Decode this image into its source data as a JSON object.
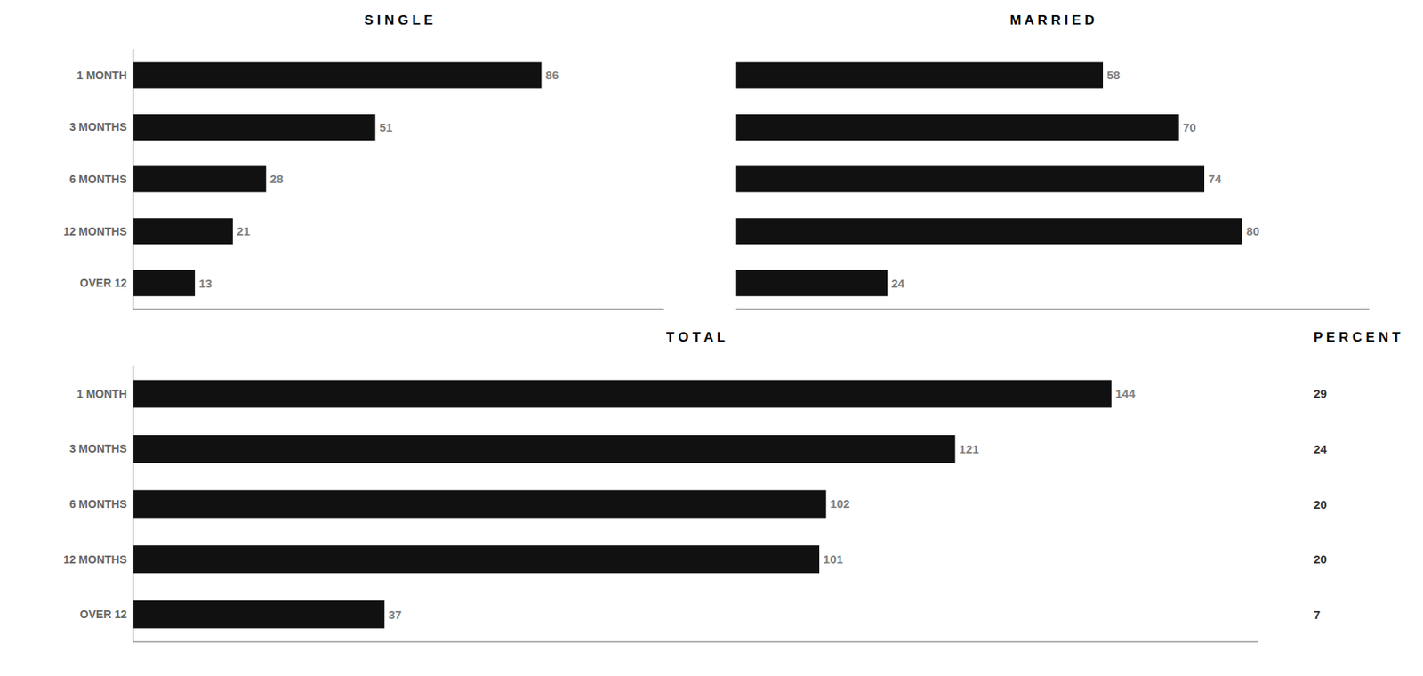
{
  "chart_data": [
    {
      "type": "bar",
      "orientation": "horizontal",
      "title": "S I N G L E",
      "categories": [
        "1 MONTH",
        "3 MONTHS",
        "6 MONTHS",
        "12 MONTHS",
        "OVER 12"
      ],
      "values": [
        86,
        51,
        28,
        21,
        13
      ],
      "color": "#111111",
      "xlim": [
        0,
        111.8
      ],
      "data_labels": true,
      "tick_labels": "y"
    },
    {
      "type": "bar",
      "orientation": "horizontal",
      "title": "M A R R I E D",
      "categories": [
        "1 MONTH",
        "3 MONTHS",
        "6 MONTHS",
        "12 MONTHS",
        "OVER 12"
      ],
      "values": [
        58,
        70,
        74,
        80,
        24
      ],
      "color": "#111111",
      "xlim": [
        0,
        100
      ],
      "data_labels": true,
      "tick_labels": false
    },
    {
      "type": "bar",
      "orientation": "horizontal",
      "title": "T O T A L",
      "categories": [
        "1 MONTH",
        "3 MONTHS",
        "6 MONTHS",
        "12 MONTHS",
        "OVER 12"
      ],
      "values": [
        144,
        121,
        102,
        101,
        37
      ],
      "color": "#111111",
      "xlim": [
        0,
        165.6
      ],
      "data_labels": true,
      "tick_labels": "y",
      "percent_title": "P E R C E N T",
      "percent_values": [
        29,
        24,
        20,
        20,
        7
      ]
    }
  ]
}
